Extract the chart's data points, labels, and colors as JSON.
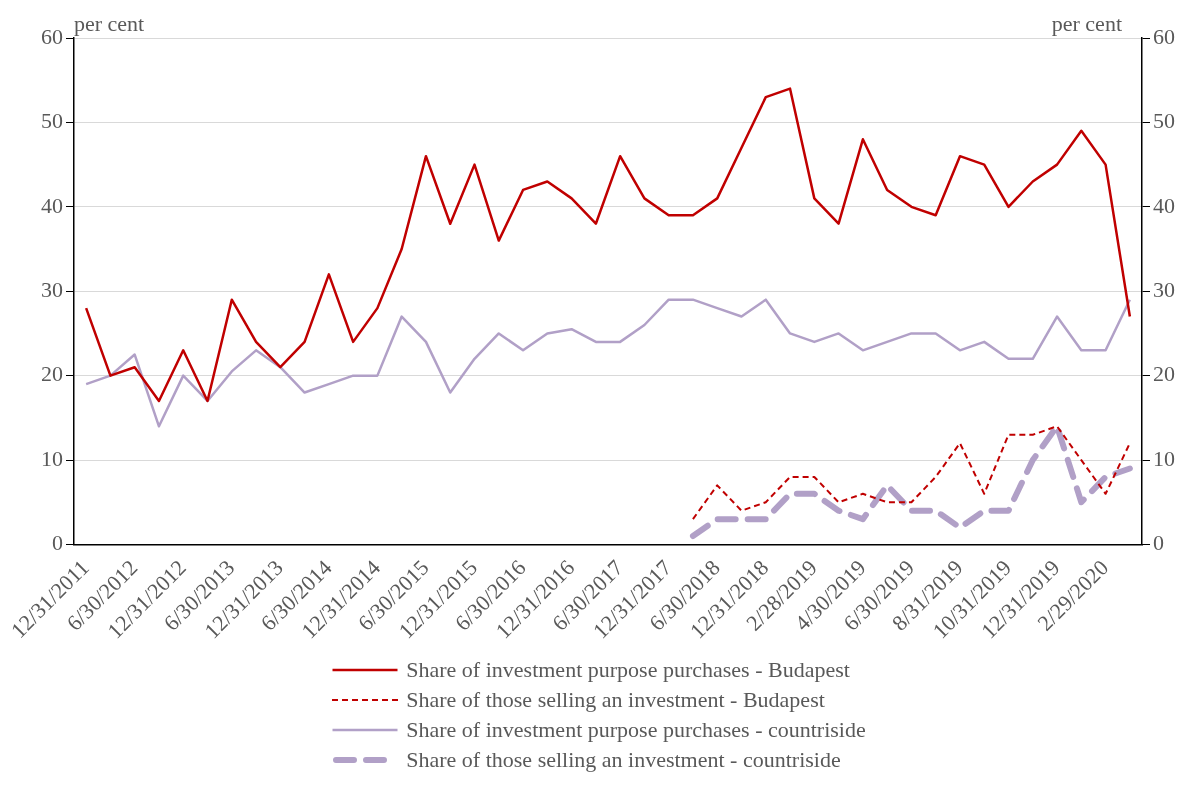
{
  "chart_data": {
    "type": "line",
    "ylabel": "per cent",
    "y2label": "per cent",
    "categories": [
      "12/31/2011",
      null,
      "6/30/2012",
      null,
      "12/31/2012",
      null,
      "6/30/2013",
      null,
      "12/31/2013",
      null,
      "6/30/2014",
      null,
      "12/31/2014",
      null,
      "6/30/2015",
      null,
      "12/31/2015",
      null,
      "6/30/2016",
      null,
      "12/31/2016",
      null,
      "6/30/2017",
      null,
      "12/31/2017",
      null,
      "6/30/2018",
      null,
      "12/31/2018",
      null,
      "2/28/2019",
      null,
      "4/30/2019",
      null,
      "6/30/2019",
      null,
      "8/31/2019",
      null,
      "10/31/2019",
      null,
      "12/31/2019",
      null,
      "2/29/2020",
      null
    ],
    "series": [
      {
        "name": "Share of investment purpose purchases - Budapest",
        "color": "#c00000",
        "line_style": "solid",
        "values": [
          28,
          20,
          21,
          17,
          23,
          17,
          29,
          24,
          21,
          24,
          32,
          24,
          28,
          35,
          46,
          38,
          45,
          36,
          42,
          43,
          41,
          38,
          46,
          41,
          39,
          39,
          41,
          47,
          53,
          54,
          41,
          38,
          48,
          42,
          40,
          39,
          46,
          45,
          40,
          43,
          45,
          49,
          45,
          27
        ]
      },
      {
        "name": "Share of those selling an investment - Budapest",
        "color": "#c00000",
        "line_style": "dashed",
        "values": [
          null,
          null,
          null,
          null,
          null,
          null,
          null,
          null,
          null,
          null,
          null,
          null,
          null,
          null,
          null,
          null,
          null,
          null,
          null,
          null,
          null,
          null,
          null,
          null,
          null,
          3,
          7,
          4,
          5,
          8,
          8,
          5,
          6,
          5,
          5,
          8,
          12,
          6,
          13,
          13,
          14,
          10,
          6,
          12
        ]
      },
      {
        "name": "Share of investment purpose purchases - countriside",
        "color": "#b1a0c7",
        "line_style": "solid",
        "values": [
          19,
          20,
          22.5,
          14,
          20,
          17,
          20.5,
          23,
          21,
          18,
          19,
          20,
          20,
          27,
          24,
          18,
          22,
          25,
          23,
          25,
          25.5,
          24,
          24,
          26,
          29,
          29,
          28,
          27,
          29,
          25,
          24,
          25,
          23,
          24,
          25,
          25,
          23,
          24,
          22,
          22,
          27,
          23,
          23,
          29
        ]
      },
      {
        "name": "Share of those selling an investment - countriside",
        "color": "#b1a0c7",
        "line_style": "dashed",
        "values": [
          null,
          null,
          null,
          null,
          null,
          null,
          null,
          null,
          null,
          null,
          null,
          null,
          null,
          null,
          null,
          null,
          null,
          null,
          null,
          null,
          null,
          null,
          null,
          null,
          null,
          1,
          3,
          3,
          3,
          6,
          6,
          4,
          3,
          7,
          4,
          4,
          2,
          4,
          4,
          10,
          14,
          5,
          8,
          9
        ]
      }
    ],
    "ylim": [
      0,
      60
    ],
    "yticks": [
      0,
      10,
      20,
      30,
      40,
      50,
      60
    ],
    "y2lim": [
      0,
      60
    ],
    "y2ticks": [
      0,
      10,
      20,
      30,
      40,
      50,
      60
    ],
    "grid": "y",
    "legend": "bottom"
  }
}
